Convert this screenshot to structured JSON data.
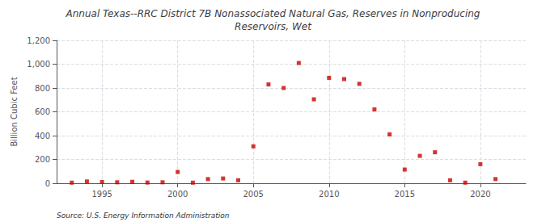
{
  "chart_data": {
    "type": "scatter",
    "title": "Annual Texas--RRC District 7B Nonassociated Natural Gas, Reserves in Nonproducing\nReservoirs, Wet",
    "ylabel": "Billion Cubic Feet",
    "annotation": "Source: U.S. Energy Information Administration",
    "x": [
      1993,
      1994,
      1995,
      1996,
      1997,
      1998,
      1999,
      2000,
      2001,
      2002,
      2003,
      2004,
      2005,
      2006,
      2007,
      2008,
      2009,
      2010,
      2011,
      2012,
      2013,
      2014,
      2015,
      2016,
      2017,
      2018,
      2019,
      2020,
      2021
    ],
    "values": [
      5,
      15,
      10,
      8,
      12,
      6,
      8,
      95,
      5,
      35,
      40,
      25,
      310,
      830,
      800,
      1010,
      705,
      885,
      875,
      835,
      620,
      410,
      115,
      230,
      260,
      25,
      5,
      160,
      35
    ],
    "color": "#cc0000",
    "marker": "square",
    "xlim": [
      1992,
      2023
    ],
    "xticks": [
      1995,
      2000,
      2005,
      2010,
      2015,
      2020
    ],
    "ylim": [
      0,
      1200
    ],
    "yticks": [
      0,
      200,
      400,
      600,
      800,
      {
        "value": 1000,
        "label": "1,000"
      },
      {
        "value": 1200,
        "label": "1,200"
      }
    ],
    "grid": true
  }
}
